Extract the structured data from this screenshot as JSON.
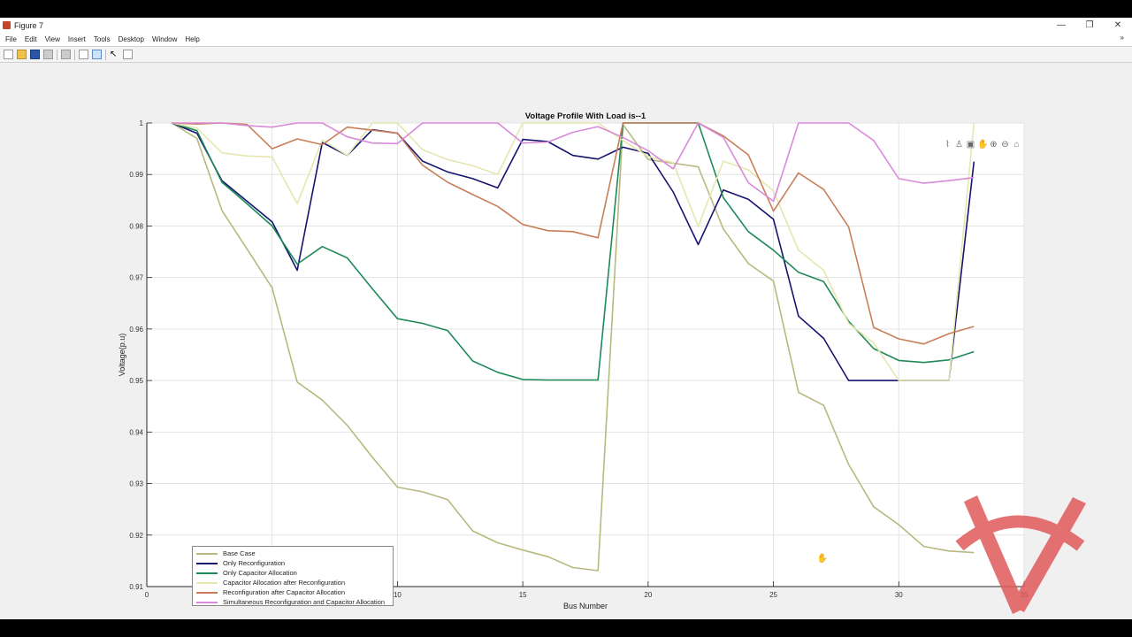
{
  "window": {
    "title": "Figure 7",
    "controls": {
      "minimize": "—",
      "maximize": "❐",
      "close": "✕"
    }
  },
  "menubar": {
    "items": [
      "File",
      "Edit",
      "View",
      "Insert",
      "Tools",
      "Desktop",
      "Window",
      "Help"
    ],
    "expand_icon": "»"
  },
  "toolbar": {
    "buttons": [
      "new-figure",
      "open-file",
      "save",
      "print",
      "link-plot",
      "hide-plot-tools",
      "show-plot-tools",
      "edit-plot",
      "open-property-inspector"
    ]
  },
  "axes_toolbar": {
    "icons": [
      "brush",
      "data-tips",
      "export",
      "pan",
      "zoom-in",
      "zoom-out",
      "home"
    ],
    "glyphs": [
      "⌇",
      "♙",
      "▣",
      "✋",
      "⊕",
      "⊖",
      "⌂"
    ]
  },
  "colors": {
    "base_case": "#b8b87f",
    "only_reconfiguration": "#14146e",
    "only_capacitor": "#1e8a58",
    "cap_after_reconf": "#e6e6b0",
    "reconf_after_cap": "#c97e5a",
    "simultaneous": "#d98ad9",
    "grid": "#e3e3e3",
    "axis": "#262626",
    "watermark": "#e05a5a"
  },
  "chart_data": {
    "type": "line",
    "title": "Voltage Profile With Load is--1",
    "xlabel": "Bus Number",
    "ylabel": "Voltage(p.u)",
    "xlim": [
      0,
      35
    ],
    "ylim": [
      0.91,
      1.0
    ],
    "xticks": [
      0,
      5,
      10,
      15,
      20,
      25,
      30,
      35
    ],
    "yticks": [
      0.91,
      0.92,
      0.93,
      0.94,
      0.95,
      0.96,
      0.97,
      0.98,
      0.99,
      1
    ],
    "ytick_labels": [
      "0.91",
      "0.92",
      "0.93",
      "0.94",
      "0.95",
      "0.96",
      "0.97",
      "0.98",
      "0.99",
      "1"
    ],
    "grid": true,
    "legend_position": "lower-left",
    "series": [
      {
        "name": "Base Case",
        "x": [
          1,
          2,
          3,
          4,
          5,
          6,
          7,
          8,
          9,
          10,
          11,
          12,
          13,
          14,
          15,
          16,
          17,
          18,
          19,
          20,
          21,
          22,
          23,
          24,
          25,
          26,
          27,
          28,
          29,
          30,
          31,
          32,
          33
        ],
        "values": [
          1.0,
          0.997,
          0.983,
          0.9755,
          0.968,
          0.9497,
          0.9462,
          0.9413,
          0.9351,
          0.9293,
          0.9284,
          0.9269,
          0.9208,
          0.9185,
          0.9171,
          0.9158,
          0.9137,
          0.9131,
          0.9997,
          0.9929,
          0.9922,
          0.9915,
          0.9794,
          0.9727,
          0.9693,
          0.9477,
          0.9452,
          0.9337,
          0.9255,
          0.922,
          0.9178,
          0.9169,
          0.9166
        ]
      },
      {
        "name": "Only Reconfiguration",
        "x": [
          1,
          2,
          3,
          4,
          5,
          6,
          7,
          8,
          9,
          10,
          11,
          12,
          13,
          14,
          15,
          16,
          17,
          18,
          19,
          20,
          21,
          22,
          23,
          24,
          25,
          26,
          27,
          28,
          29,
          30,
          31,
          32,
          33
        ],
        "values": [
          1.0,
          0.998,
          0.9888,
          0.9848,
          0.9808,
          0.9714,
          0.9962,
          0.9937,
          0.9987,
          0.998,
          0.9926,
          0.9905,
          0.9892,
          0.9874,
          0.9968,
          0.9964,
          0.9937,
          0.993,
          0.9953,
          0.9941,
          0.9866,
          0.9764,
          0.987,
          0.9852,
          0.9813,
          0.9625,
          0.9582,
          0.95,
          0.95,
          0.95,
          0.95,
          0.95,
          0.9925
        ]
      },
      {
        "name": "Only Capacitor Allocation",
        "x": [
          1,
          2,
          3,
          4,
          5,
          6,
          7,
          8,
          9,
          10,
          11,
          12,
          13,
          14,
          15,
          16,
          17,
          18,
          19,
          20,
          21,
          22,
          23,
          24,
          25,
          26,
          27,
          28,
          29,
          30,
          31,
          32,
          33
        ],
        "values": [
          1.0,
          0.9985,
          0.9885,
          0.9843,
          0.98,
          0.9726,
          0.976,
          0.9738,
          0.9678,
          0.962,
          0.9611,
          0.9597,
          0.9538,
          0.9516,
          0.9502,
          0.9501,
          0.9501,
          0.9501,
          1.0,
          1.0,
          1.0,
          1.0,
          0.9855,
          0.9789,
          0.9753,
          0.971,
          0.9692,
          0.9615,
          0.9562,
          0.9539,
          0.9535,
          0.954,
          0.9556
        ]
      },
      {
        "name": "Capacitor Allocation after Reconfiguration",
        "x": [
          1,
          2,
          3,
          4,
          5,
          6,
          7,
          8,
          9,
          10,
          11,
          12,
          13,
          14,
          15,
          16,
          17,
          18,
          19,
          20,
          21,
          22,
          23,
          24,
          25,
          26,
          27,
          28,
          29,
          30,
          31,
          32,
          33
        ],
        "values": [
          1.0,
          0.999,
          0.9942,
          0.9936,
          0.9934,
          0.9843,
          0.9967,
          0.9937,
          1.0,
          1.0,
          0.9948,
          0.9929,
          0.9917,
          0.99,
          1.0,
          1.0,
          1.0,
          1.0,
          0.9966,
          0.9935,
          0.9923,
          0.9799,
          0.9926,
          0.9909,
          0.9868,
          0.9753,
          0.9714,
          0.9611,
          0.9573,
          0.95,
          0.95,
          0.95,
          1.0
        ]
      },
      {
        "name": "Reconfiguration after Capacitor Allocation",
        "x": [
          1,
          2,
          3,
          4,
          5,
          6,
          7,
          8,
          9,
          10,
          11,
          12,
          13,
          14,
          15,
          16,
          17,
          18,
          19,
          20,
          21,
          22,
          23,
          24,
          25,
          26,
          27,
          28,
          29,
          30,
          31,
          32,
          33
        ],
        "values": [
          1.0,
          0.9998,
          1.0,
          0.9997,
          0.995,
          0.9969,
          0.9958,
          0.9992,
          0.9986,
          0.998,
          0.9918,
          0.9885,
          0.9861,
          0.9838,
          0.9803,
          0.9791,
          0.9789,
          0.9777,
          1.0,
          1.0,
          1.0,
          1.0,
          0.9975,
          0.9938,
          0.9829,
          0.9903,
          0.9871,
          0.9798,
          0.9603,
          0.9581,
          0.9571,
          0.9591,
          0.9605
        ]
      },
      {
        "name": "Simultaneous Reconfiguration and Capacitor Allocation",
        "x": [
          1,
          2,
          3,
          4,
          5,
          6,
          7,
          8,
          9,
          10,
          11,
          12,
          13,
          14,
          15,
          16,
          17,
          18,
          19,
          20,
          21,
          22,
          23,
          24,
          25,
          26,
          27,
          28,
          29,
          30,
          31,
          32,
          33
        ],
        "values": [
          1.0,
          1.0,
          1.0,
          0.9995,
          0.9992,
          1.0,
          1.0,
          0.9973,
          0.9961,
          0.996,
          1.0,
          1.0,
          1.0,
          1.0,
          0.9961,
          0.9963,
          0.9982,
          0.9993,
          0.9972,
          0.9946,
          0.9911,
          1.0,
          0.9972,
          0.9884,
          0.9848,
          1.0,
          1.0,
          1.0,
          0.9966,
          0.9892,
          0.9883,
          0.9888,
          0.9894
        ]
      }
    ]
  },
  "annotations": {
    "cursor": "pan-cursor"
  }
}
